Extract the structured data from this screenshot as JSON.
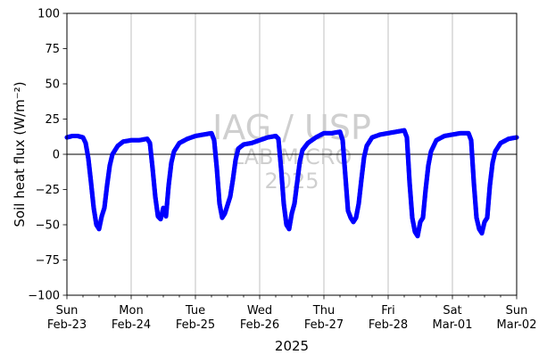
{
  "chart_data": {
    "type": "scatter",
    "ylabel": "Soil heat flux (W/m⁻²)",
    "xlabel": "2025",
    "ylim": [
      -100,
      100
    ],
    "xlim": [
      "2025-02-23",
      "2025-03-02"
    ],
    "y_ticks": [
      "100",
      "75",
      "50",
      "25",
      "0",
      "−25",
      "−50",
      "−75",
      "−100"
    ],
    "x_ticks": [
      {
        "line1": "Sun",
        "line2": "Feb-23"
      },
      {
        "line1": "Mon",
        "line2": "Feb-24"
      },
      {
        "line1": "Tue",
        "line2": "Feb-25"
      },
      {
        "line1": "Wed",
        "line2": "Feb-26"
      },
      {
        "line1": "Thu",
        "line2": "Feb-27"
      },
      {
        "line1": "Fri",
        "line2": "Feb-28"
      },
      {
        "line1": "Sat",
        "line2": "Mar-01"
      },
      {
        "line1": "Sun",
        "line2": "Mar-02"
      }
    ],
    "grid": "vertical at day ticks",
    "zero_line": true,
    "marker_color": "#0000ff",
    "series": [
      {
        "x": [
          "2025-02-23 00:00",
          "2025-02-23 02:00",
          "2025-02-23 04:00",
          "2025-02-23 06:00",
          "2025-02-23 07:00",
          "2025-02-23 08:00",
          "2025-02-23 09:00",
          "2025-02-23 10:00",
          "2025-02-23 11:00",
          "2025-02-23 12:00",
          "2025-02-23 13:00",
          "2025-02-23 14:00",
          "2025-02-23 15:00",
          "2025-02-23 16:00",
          "2025-02-23 17:00",
          "2025-02-23 19:00",
          "2025-02-23 21:00",
          "2025-02-24 00:00",
          "2025-02-24 03:00",
          "2025-02-24 06:00",
          "2025-02-24 07:00",
          "2025-02-24 08:00",
          "2025-02-24 09:00",
          "2025-02-24 10:00",
          "2025-02-24 11:00",
          "2025-02-24 12:00",
          "2025-02-24 13:00",
          "2025-02-24 14:00",
          "2025-02-24 15:00",
          "2025-02-24 16:00",
          "2025-02-24 18:00",
          "2025-02-24 21:00",
          "2025-02-25 00:00",
          "2025-02-25 03:00",
          "2025-02-25 06:00",
          "2025-02-25 07:00",
          "2025-02-25 08:00",
          "2025-02-25 09:00",
          "2025-02-25 10:00",
          "2025-02-25 11:00",
          "2025-02-25 12:00",
          "2025-02-25 13:00",
          "2025-02-25 14:00",
          "2025-02-25 15:00",
          "2025-02-25 16:00",
          "2025-02-25 18:00",
          "2025-02-25 21:00",
          "2025-02-26 00:00",
          "2025-02-26 03:00",
          "2025-02-26 06:00",
          "2025-02-26 07:00",
          "2025-02-26 08:00",
          "2025-02-26 09:00",
          "2025-02-26 10:00",
          "2025-02-26 11:00",
          "2025-02-26 12:00",
          "2025-02-26 13:00",
          "2025-02-26 14:00",
          "2025-02-26 15:00",
          "2025-02-26 16:00",
          "2025-02-26 18:00",
          "2025-02-26 21:00",
          "2025-02-27 00:00",
          "2025-02-27 03:00",
          "2025-02-27 06:00",
          "2025-02-27 07:00",
          "2025-02-27 08:00",
          "2025-02-27 09:00",
          "2025-02-27 10:00",
          "2025-02-27 11:00",
          "2025-02-27 12:00",
          "2025-02-27 13:00",
          "2025-02-27 14:00",
          "2025-02-27 15:00",
          "2025-02-27 16:00",
          "2025-02-27 18:00",
          "2025-02-27 21:00",
          "2025-02-28 00:00",
          "2025-02-28 03:00",
          "2025-02-28 06:00",
          "2025-02-28 07:00",
          "2025-02-28 08:00",
          "2025-02-28 09:00",
          "2025-02-28 10:00",
          "2025-02-28 11:00",
          "2025-02-28 12:00",
          "2025-02-28 13:00",
          "2025-02-28 14:00",
          "2025-02-28 15:00",
          "2025-02-28 16:00",
          "2025-02-28 18:00",
          "2025-02-28 21:00",
          "2025-03-01 00:00",
          "2025-03-01 03:00",
          "2025-03-01 06:00",
          "2025-03-01 07:00",
          "2025-03-01 08:00",
          "2025-03-01 09:00",
          "2025-03-01 10:00",
          "2025-03-01 11:00",
          "2025-03-01 12:00",
          "2025-03-01 13:00",
          "2025-03-01 14:00",
          "2025-03-01 15:00",
          "2025-03-01 16:00",
          "2025-03-01 18:00",
          "2025-03-01 21:00",
          "2025-03-02 00:00"
        ],
        "y": [
          12,
          13,
          13,
          12,
          8,
          -3,
          -20,
          -38,
          -50,
          -53,
          -44,
          -38,
          -22,
          -8,
          0,
          6,
          9,
          10,
          10,
          11,
          8,
          -10,
          -30,
          -44,
          -46,
          -38,
          -44,
          -22,
          -6,
          2,
          8,
          11,
          13,
          14,
          15,
          10,
          -10,
          -35,
          -45,
          -42,
          -36,
          -30,
          -18,
          -4,
          4,
          7,
          8,
          10,
          12,
          13,
          11,
          -10,
          -35,
          -50,
          -53,
          -42,
          -35,
          -20,
          -5,
          3,
          8,
          12,
          15,
          15,
          16,
          10,
          -15,
          -40,
          -45,
          -48,
          -45,
          -35,
          -18,
          -2,
          6,
          12,
          14,
          15,
          16,
          17,
          12,
          -20,
          -45,
          -55,
          -58,
          -48,
          -45,
          -25,
          -8,
          2,
          10,
          13,
          14,
          15,
          15,
          10,
          -20,
          -45,
          -53,
          -56,
          -48,
          -45,
          -22,
          -6,
          2,
          8,
          11,
          12
        ]
      }
    ]
  },
  "watermark": {
    "line1": "IAG / USP",
    "line2": "LAB MICRO",
    "line3": "2025"
  }
}
